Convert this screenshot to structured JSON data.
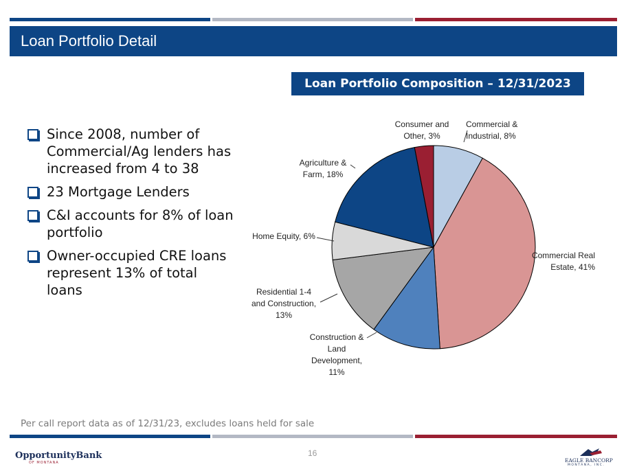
{
  "header": {
    "title": "Loan Portfolio Detail"
  },
  "colors": {
    "navy": "#0d4585",
    "gray": "#b3b8c4",
    "red": "#9a1f32"
  },
  "bullets": [
    "Since 2008, number of Commercial/Ag lenders has increased from 4 to 38",
    "23 Mortgage Lenders",
    "C&I accounts for 8% of loan portfolio",
    "Owner-occupied CRE loans represent 13% of total loans"
  ],
  "footnote": "Per call report data as of 12/31/23, excludes loans held for sale",
  "page_number": "16",
  "logos": {
    "left": {
      "name": "OpportunityBank",
      "sub": "OF MONTANA"
    },
    "right": {
      "name": "EAGLE BANCORP",
      "sub": "MONTANA, INC."
    }
  },
  "chart_data": {
    "type": "pie",
    "title": "Loan Portfolio Composition – 12/31/2023",
    "slices": [
      {
        "label": [
          "Commercial &",
          "Industrial, 8%"
        ],
        "value": 8,
        "color": "#b9cde5"
      },
      {
        "label": [
          "Commercial Real",
          "Estate, 41%"
        ],
        "value": 41,
        "color": "#d99594"
      },
      {
        "label": [
          "Construction &",
          "Land",
          "Development,",
          "11%"
        ],
        "value": 11,
        "color": "#4f81bd"
      },
      {
        "label": [
          "Residential 1-4",
          "and Construction,",
          "13%"
        ],
        "value": 13,
        "color": "#a6a6a6"
      },
      {
        "label": [
          "Home Equity, 6%"
        ],
        "value": 6,
        "color": "#d9d9d9"
      },
      {
        "label": [
          "Agriculture &",
          "Farm, 18%"
        ],
        "value": 18,
        "color": "#0d4585"
      },
      {
        "label": [
          "Consumer and",
          "Other, 3%"
        ],
        "value": 3,
        "color": "#9a1f32"
      }
    ]
  }
}
